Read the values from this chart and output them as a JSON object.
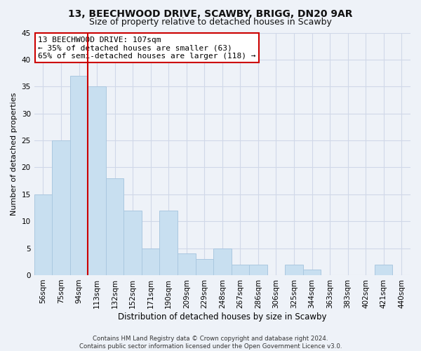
{
  "title": "13, BEECHWOOD DRIVE, SCAWBY, BRIGG, DN20 9AR",
  "subtitle": "Size of property relative to detached houses in Scawby",
  "xlabel": "Distribution of detached houses by size in Scawby",
  "ylabel": "Number of detached properties",
  "bar_color": "#c8dff0",
  "bar_edge_color": "#aac8e0",
  "categories": [
    "56sqm",
    "75sqm",
    "94sqm",
    "113sqm",
    "132sqm",
    "152sqm",
    "171sqm",
    "190sqm",
    "209sqm",
    "229sqm",
    "248sqm",
    "267sqm",
    "286sqm",
    "306sqm",
    "325sqm",
    "344sqm",
    "363sqm",
    "383sqm",
    "402sqm",
    "421sqm",
    "440sqm"
  ],
  "values": [
    15,
    25,
    37,
    35,
    18,
    12,
    5,
    12,
    4,
    3,
    5,
    2,
    2,
    0,
    2,
    1,
    0,
    0,
    0,
    2,
    0
  ],
  "vline_color": "#cc0000",
  "vline_x_index": 3,
  "ylim": [
    0,
    45
  ],
  "annotation_text": "13 BEECHWOOD DRIVE: 107sqm\n← 35% of detached houses are smaller (63)\n65% of semi-detached houses are larger (118) →",
  "annotation_box_color": "#ffffff",
  "annotation_box_edgecolor": "#cc0000",
  "footer_line1": "Contains HM Land Registry data © Crown copyright and database right 2024.",
  "footer_line2": "Contains public sector information licensed under the Open Government Licence v3.0.",
  "grid_color": "#d0d8e8",
  "background_color": "#eef2f8",
  "title_fontsize": 10,
  "subtitle_fontsize": 9,
  "tick_fontsize": 7.5,
  "ylabel_fontsize": 8,
  "xlabel_fontsize": 8.5,
  "footer_fontsize": 6.2,
  "annotation_fontsize": 8
}
